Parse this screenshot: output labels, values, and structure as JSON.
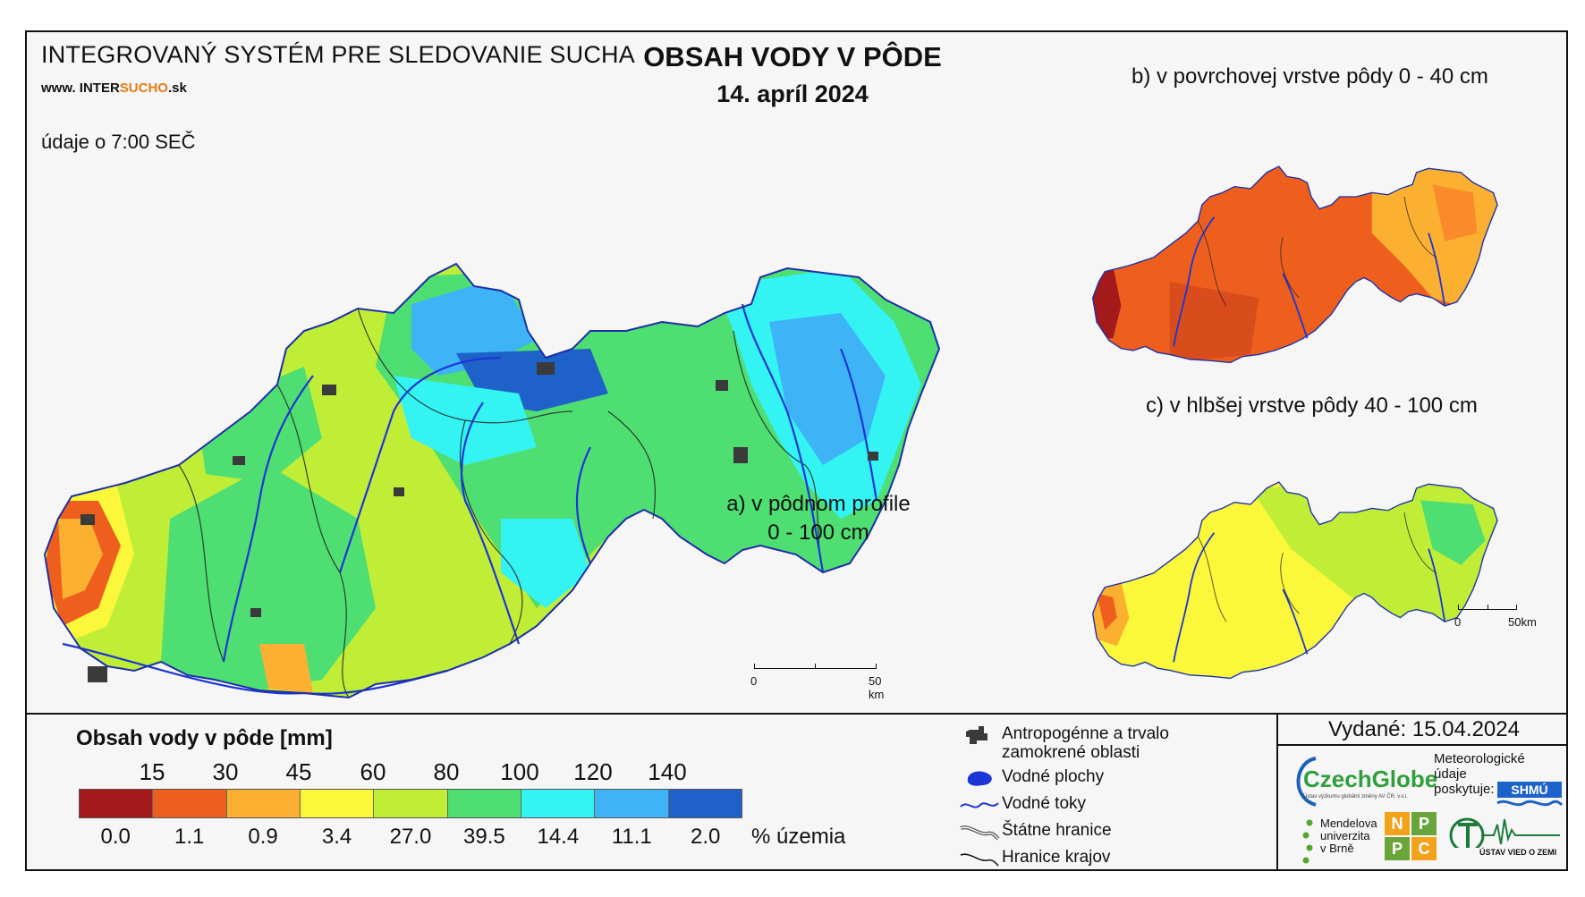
{
  "header": {
    "system_title": "INTEGROVANÝ SYSTÉM PRE SLEDOVANIE SUCHA",
    "site_prefix": "www. INTER",
    "site_accent": "SUCHO",
    "site_suffix": ".sk",
    "time_note": "údaje o 7:00 SEČ",
    "title": "OBSAH VODY V PÔDE",
    "date": "14. apríl 2024"
  },
  "panels": {
    "a_line1": "a) v pôdnom profile",
    "a_line2": "0 - 100 cm",
    "b": "b) v povrchovej vrstve pôdy 0 - 40 cm",
    "c": "c) v hlbšej vrstve pôdy 40 - 100 cm"
  },
  "scalebars": {
    "main": {
      "start": "0",
      "end": "50 km"
    },
    "small": {
      "start": "0",
      "end": "50km"
    }
  },
  "legend": {
    "title": "Obsah vody v pôde ",
    "unit": "[mm]",
    "thresholds": [
      "15",
      "30",
      "45",
      "60",
      "80",
      "100",
      "120",
      "140"
    ],
    "classes": [
      {
        "color": "#a41a1a",
        "percent": "0.0"
      },
      {
        "color": "#ee5f1e",
        "percent": "1.1"
      },
      {
        "color": "#fbb031",
        "percent": "0.9"
      },
      {
        "color": "#fbf73a",
        "percent": "3.4"
      },
      {
        "color": "#c0ee37",
        "percent": "27.0"
      },
      {
        "color": "#4fde72",
        "percent": "39.5"
      },
      {
        "color": "#34f3f3",
        "percent": "14.4"
      },
      {
        "color": "#3eb3f6",
        "percent": "11.1"
      },
      {
        "color": "#1e62c9",
        "percent": "2.0"
      }
    ],
    "percent_unit": "% územia"
  },
  "symbols": {
    "anthropogenic_line1": "Antropogénne a trvalo",
    "anthropogenic_line2": "zamokrené oblasti",
    "water_bodies": "Vodné plochy",
    "rivers": "Vodné toky",
    "state_border": "Štátne hranice",
    "region_border": "Hranice krajov"
  },
  "footer": {
    "issued": "Vydané: 15.04.2024",
    "czechglobe": "CzechGlobe",
    "czechglobe_sub": "Ústav výzkumu globální změny AV ČR, v.v.i.",
    "meteo_line1": "Meteorologické",
    "meteo_line2": "údaje",
    "meteo_line3": "poskytuje:",
    "shmu": "SHMÚ",
    "mendel_line1": "Mendelova",
    "mendel_line2": "univerzita",
    "mendel_line3": "v Brně",
    "nppc": [
      "N",
      "P",
      "P",
      "C"
    ],
    "uvz": "ÚSTAV VIED O ZEMI"
  },
  "colors": {
    "frame_bg": "#f6f6f6",
    "river": "#1d35d6",
    "urban": "#3a3a3a"
  }
}
